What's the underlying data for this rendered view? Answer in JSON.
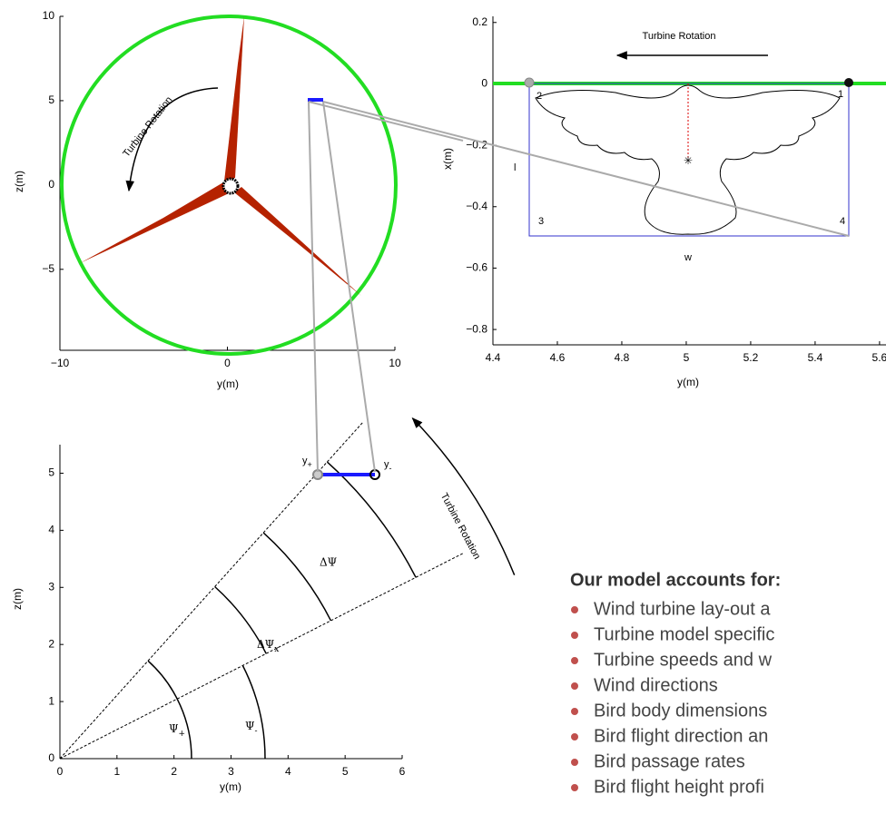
{
  "chart_data": [
    {
      "type": "rotor",
      "xlim": [
        -10,
        10
      ],
      "ylim": [
        -9.8,
        10
      ],
      "xticks": [
        {
          "value": -10,
          "label": "−10"
        },
        0,
        10
      ],
      "yticks": [
        {
          "value": -5,
          "label": "−5"
        },
        0,
        5,
        10
      ],
      "xlabel": "y(m)",
      "ylabel": "z(m)",
      "annotations": {
        "rotation": "Turbine Rotation"
      }
    },
    {
      "type": "bird",
      "xlim": [
        4.4,
        5.62
      ],
      "ylim": [
        -0.85,
        0.22
      ],
      "xticks": [
        4.4,
        4.6,
        4.8,
        5,
        5.2,
        5.4,
        5.6
      ],
      "yticks": [
        0.2,
        0,
        {
          "value": -0.2,
          "label": "−0.2"
        },
        {
          "value": -0.4,
          "label": "−0.4"
        },
        {
          "value": -0.6,
          "label": "−0.6"
        },
        {
          "value": -0.8,
          "label": "−0.8"
        }
      ],
      "xlabel": "y(m)",
      "ylabel": "x(m)",
      "annotations": {
        "rotation": "Turbine Rotation",
        "corners": [
          "1",
          "2",
          "3",
          "4"
        ],
        "length": "l",
        "width": "w"
      }
    },
    {
      "type": "sector",
      "xlim": [
        0,
        6
      ],
      "ylim": [
        0,
        5.5
      ],
      "xticks": [
        0,
        1,
        2,
        3,
        4,
        5,
        6
      ],
      "yticks": [
        0,
        1,
        2,
        3,
        4,
        5
      ],
      "xlabel": "y(m)",
      "ylabel": "z(m)",
      "annotations": {
        "rotation": "Turbine Rotation",
        "y_plus": [
          "y",
          "+"
        ],
        "y_minus": [
          "y",
          "-"
        ],
        "delta_psi": "ΔΨ",
        "delta_psi_x": [
          "ΔΨ",
          "x"
        ],
        "psi_plus": [
          "Ψ",
          "+"
        ],
        "psi_minus": [
          "Ψ",
          "-"
        ]
      }
    }
  ],
  "text_panel": {
    "heading": "Our model accounts for:",
    "bullets": [
      "Wind turbine lay-out a",
      "Turbine model specific",
      "Turbine speeds and w",
      "Wind directions",
      "Bird body dimensions",
      "Bird flight direction an",
      "Bird passage rates",
      "Bird flight height profi"
    ]
  }
}
